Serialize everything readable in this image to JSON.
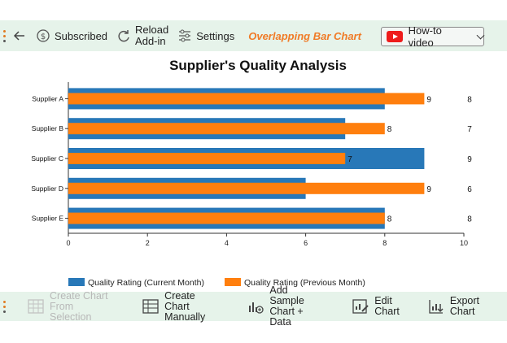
{
  "top_toolbar": {
    "subscribed_label": "Subscribed",
    "reload_line1": "Reload",
    "reload_line2": "Add-in",
    "settings_label": "Settings",
    "addin_title": "Overlapping Bar Chart",
    "howto_label": "How-to video"
  },
  "bottom_toolbar": {
    "create_from_selection_line1": "Create Chart",
    "create_from_selection_line2": "From Selection",
    "create_manually_line1": "Create Chart",
    "create_manually_line2": "Manually",
    "add_sample_line1": "Add Sample",
    "add_sample_line2": "Chart + Data",
    "edit_line1": "Edit",
    "edit_line2": "Chart",
    "export_line1": "Export",
    "export_line2": "Chart"
  },
  "colors": {
    "series_current": "#2878b8",
    "series_previous": "#ff7f0e",
    "toolbar_bg": "#e6f3ea",
    "accent": "#f07b27"
  },
  "chart_data": {
    "type": "bar",
    "orientation": "horizontal",
    "title": "Supplier's Quality Analysis",
    "categories": [
      "Supplier A",
      "Supplier B",
      "Supplier C",
      "Supplier D",
      "Supplier E"
    ],
    "series": [
      {
        "name": "Quality Rating (Current Month)",
        "values": [
          8,
          7,
          9,
          6,
          8
        ]
      },
      {
        "name": "Quality Rating (Previous Month)",
        "values": [
          9,
          8,
          7,
          9,
          8
        ]
      }
    ],
    "xlim": [
      0,
      10
    ],
    "xticks": [
      "0",
      "2",
      "4",
      "6",
      "8",
      "10"
    ],
    "legend_position": "bottom",
    "grid": false
  }
}
